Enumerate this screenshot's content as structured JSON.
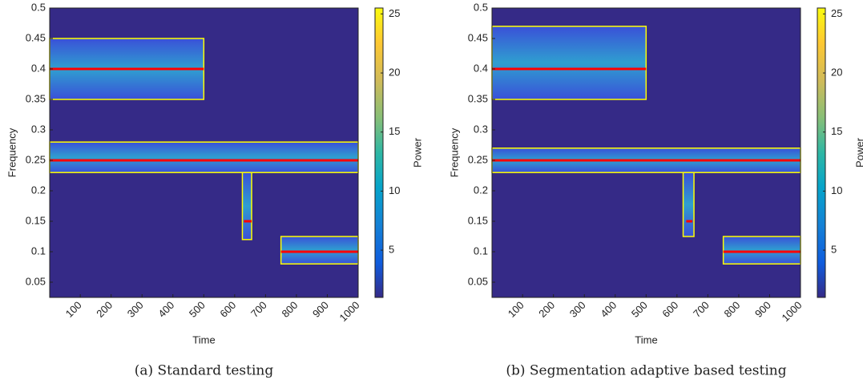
{
  "chart_data": [
    {
      "type": "heatmap",
      "caption": "(a) Standard testing",
      "xlabel": "Time",
      "ylabel": "Frequency",
      "xlim": [
        1,
        1000
      ],
      "xticks": [
        100,
        200,
        300,
        400,
        500,
        600,
        700,
        800,
        900,
        1000
      ],
      "ylim": [
        0.025,
        0.5
      ],
      "yticks": [
        0.05,
        0.1,
        0.15,
        0.2,
        0.25,
        0.3,
        0.35,
        0.4,
        0.45,
        0.5
      ],
      "colormap": "parula",
      "contour_color": "#ffff00",
      "track_color": "#ff0000",
      "colorbar": {
        "label": "Power",
        "lim": [
          1,
          25.5
        ],
        "ticks": [
          5,
          10,
          15,
          20,
          25
        ]
      },
      "regions": [
        {
          "x": [
            1,
            500
          ],
          "y": [
            0.35,
            0.45
          ]
        },
        {
          "x": [
            1,
            1000
          ],
          "y": [
            0.23,
            0.28
          ]
        },
        {
          "x": [
            625,
            655
          ],
          "y": [
            0.12,
            0.23
          ]
        },
        {
          "x": [
            750,
            1000
          ],
          "y": [
            0.08,
            0.125
          ]
        }
      ],
      "tracks": [
        {
          "x": [
            1,
            500
          ],
          "y": 0.4
        },
        {
          "x": [
            1,
            1000
          ],
          "y": 0.25
        },
        {
          "x": [
            630,
            655
          ],
          "y": 0.15
        },
        {
          "x": [
            750,
            1000
          ],
          "y": 0.1
        }
      ]
    },
    {
      "type": "heatmap",
      "caption": "(b) Segmentation adaptive based testing",
      "xlabel": "Time",
      "ylabel": "Frequency",
      "xlim": [
        1,
        1000
      ],
      "xticks": [
        100,
        200,
        300,
        400,
        500,
        600,
        700,
        800,
        900,
        1000
      ],
      "ylim": [
        0.025,
        0.5
      ],
      "yticks": [
        0.05,
        0.1,
        0.15,
        0.2,
        0.25,
        0.3,
        0.35,
        0.4,
        0.45,
        0.5
      ],
      "colormap": "parula",
      "contour_color": "#ffff00",
      "track_color": "#ff0000",
      "colorbar": {
        "label": "Power",
        "lim": [
          1,
          25.5
        ],
        "ticks": [
          5,
          10,
          15,
          20,
          25
        ]
      },
      "regions": [
        {
          "x": [
            1,
            500
          ],
          "y": [
            0.35,
            0.47
          ]
        },
        {
          "x": [
            1,
            1000
          ],
          "y": [
            0.23,
            0.27
          ]
        },
        {
          "x": [
            620,
            655
          ],
          "y": [
            0.125,
            0.23
          ]
        },
        {
          "x": [
            750,
            1000
          ],
          "y": [
            0.08,
            0.125
          ]
        }
      ],
      "tracks": [
        {
          "x": [
            1,
            500
          ],
          "y": 0.4
        },
        {
          "x": [
            1,
            1000
          ],
          "y": 0.25
        },
        {
          "x": [
            630,
            650
          ],
          "y": 0.15
        },
        {
          "x": [
            750,
            1000
          ],
          "y": 0.1
        }
      ]
    }
  ]
}
